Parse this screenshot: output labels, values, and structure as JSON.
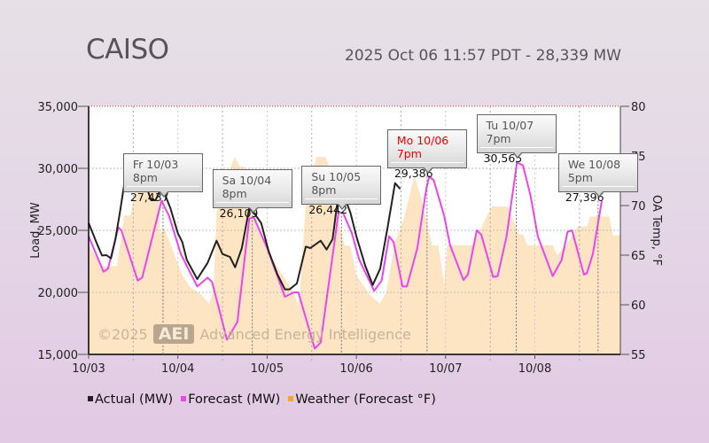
{
  "header": {
    "title": "CAISO",
    "subtitle": "2025 Oct 06 11:57 PDT - 28,339 MW"
  },
  "watermark": {
    "copyright": "©2025",
    "logo": "AEI",
    "name": "Advanced Energy Intelligence"
  },
  "legend": [
    {
      "label": "Actual (MW)",
      "color": "#222222"
    },
    {
      "label": "Forecast (MW)",
      "color": "#ee44ee"
    },
    {
      "label": "Weather (Forecast °F)",
      "color": "#f5a623"
    }
  ],
  "tooltips": [
    {
      "label": "Fr 10/03 8pm",
      "value": "27,437",
      "hour": 20,
      "mw": 27437,
      "highlight": false
    },
    {
      "label": "Sa 10/04 8pm",
      "value": "26,109",
      "hour": 44,
      "mw": 26109,
      "highlight": false
    },
    {
      "label": "Su 10/05 8pm",
      "value": "26,442",
      "hour": 68,
      "mw": 26442,
      "highlight": false
    },
    {
      "label": "Mo 10/06 7pm",
      "value": "29,386",
      "hour": 91,
      "mw": 29386,
      "highlight": true
    },
    {
      "label": "Tu 10/07 7pm",
      "value": "30,565",
      "hour": 115,
      "mw": 30565,
      "highlight": false
    },
    {
      "label": "We 10/08 5pm",
      "value": "27,396",
      "hour": 137,
      "mw": 27396,
      "highlight": false
    }
  ],
  "chart_data": {
    "type": "line",
    "x_unit": "hours since 10/03 00:00",
    "xlim": [
      0,
      143
    ],
    "x_tick_labels": [
      "10/03",
      "10/04",
      "10/05",
      "10/06",
      "10/07",
      "10/08"
    ],
    "ylabel": "Load, MW",
    "ylim": [
      15000,
      35000
    ],
    "y_tick_labels": [
      "15,000",
      "20,000",
      "25,000",
      "30,000",
      "35,000"
    ],
    "y2label": "OA Temp, °F",
    "y2lim": [
      55,
      80
    ],
    "y2_tick_labels": [
      "55",
      "60",
      "65",
      "70",
      "75",
      "80"
    ],
    "grid": true,
    "legend_position": "bottom",
    "series": [
      {
        "name": "Actual (MW)",
        "axis": "left",
        "points": [
          [
            0,
            25593
          ],
          [
            2.4,
            23807
          ],
          [
            3.6,
            22976
          ],
          [
            4.8,
            23000
          ],
          [
            6,
            22736
          ],
          [
            7.2,
            24286
          ],
          [
            8.4,
            26429
          ],
          [
            10,
            29521
          ],
          [
            12,
            30000
          ],
          [
            13.6,
            29521
          ],
          [
            15.2,
            28807
          ],
          [
            16.8,
            27429
          ],
          [
            18,
            27429
          ],
          [
            19.2,
            28214
          ],
          [
            20.4,
            27979
          ],
          [
            22,
            26786
          ],
          [
            24,
            24762
          ],
          [
            25.2,
            24048
          ],
          [
            26.4,
            22619
          ],
          [
            29.2,
            21071
          ],
          [
            32,
            22381
          ],
          [
            34.4,
            24167
          ],
          [
            36,
            23095
          ],
          [
            38,
            22857
          ],
          [
            39.4,
            22024
          ],
          [
            41.2,
            23571
          ],
          [
            43.2,
            26786
          ],
          [
            44.4,
            26429
          ],
          [
            46.4,
            25595
          ],
          [
            48.4,
            23333
          ],
          [
            50.8,
            21429
          ],
          [
            52.8,
            20238
          ],
          [
            54,
            20238
          ],
          [
            56,
            20714
          ],
          [
            58.4,
            23690
          ],
          [
            59.6,
            23571
          ],
          [
            62.4,
            24167
          ],
          [
            64,
            23452
          ],
          [
            65.6,
            24286
          ],
          [
            67.2,
            27976
          ],
          [
            68.4,
            27976
          ],
          [
            70.4,
            26429
          ],
          [
            72,
            24524
          ],
          [
            74.4,
            22143
          ],
          [
            76.4,
            20595
          ],
          [
            78.4,
            21905
          ],
          [
            80.4,
            25238
          ],
          [
            82.4,
            28810
          ],
          [
            83.8,
            28333
          ]
        ]
      },
      {
        "name": "Forecast (MW)",
        "axis": "left",
        "points": [
          [
            0,
            24524
          ],
          [
            4,
            21667
          ],
          [
            5.2,
            21905
          ],
          [
            8,
            25238
          ],
          [
            8.8,
            25000
          ],
          [
            13.2,
            20952
          ],
          [
            14.4,
            21190
          ],
          [
            19.6,
            27381
          ],
          [
            21.6,
            26190
          ],
          [
            24.8,
            23095
          ],
          [
            29.2,
            20476
          ],
          [
            32,
            21190
          ],
          [
            33.2,
            20833
          ],
          [
            37.2,
            16190
          ],
          [
            40,
            17619
          ],
          [
            43.2,
            25952
          ],
          [
            44.4,
            26071
          ],
          [
            48,
            23571
          ],
          [
            52.8,
            19643
          ],
          [
            55.2,
            20000
          ],
          [
            56.4,
            20000
          ],
          [
            60.8,
            15476
          ],
          [
            62.4,
            15952
          ],
          [
            67.2,
            26429
          ],
          [
            68.4,
            26429
          ],
          [
            70.8,
            24762
          ],
          [
            72.8,
            22619
          ],
          [
            76.8,
            20119
          ],
          [
            78.8,
            20952
          ],
          [
            80.8,
            24524
          ],
          [
            82,
            24048
          ],
          [
            84.4,
            20476
          ],
          [
            85.6,
            20476
          ],
          [
            88.4,
            23571
          ],
          [
            90.8,
            28333
          ],
          [
            91.6,
            29336
          ],
          [
            92.8,
            29048
          ],
          [
            95.6,
            26190
          ],
          [
            97.2,
            23810
          ],
          [
            100.8,
            21000
          ],
          [
            102,
            21429
          ],
          [
            104.4,
            25000
          ],
          [
            105.6,
            24643
          ],
          [
            108.8,
            21238
          ],
          [
            110,
            21310
          ],
          [
            112.4,
            24524
          ],
          [
            115.2,
            30476
          ],
          [
            116.8,
            30238
          ],
          [
            118.8,
            27857
          ],
          [
            120.8,
            24524
          ],
          [
            124.8,
            21310
          ],
          [
            127.2,
            22619
          ],
          [
            128.8,
            24881
          ],
          [
            130,
            25000
          ],
          [
            133.2,
            21429
          ],
          [
            134,
            21548
          ],
          [
            135.6,
            23095
          ],
          [
            138,
            27381
          ]
        ]
      },
      {
        "name": "Weather (Forecast °F)",
        "axis": "right",
        "type": "area",
        "points": [
          [
            0,
            66
          ],
          [
            3.6,
            63.9
          ],
          [
            7.6,
            63.9
          ],
          [
            9.6,
            69
          ],
          [
            11.2,
            69
          ],
          [
            12.4,
            71.2
          ],
          [
            15.2,
            71.7
          ],
          [
            18.8,
            71.4
          ],
          [
            19.2,
            67.2
          ],
          [
            20.4,
            67.7
          ],
          [
            25.2,
            63
          ],
          [
            27.2,
            61.8
          ],
          [
            30.4,
            61
          ],
          [
            32.4,
            60.1
          ],
          [
            33.6,
            61.5
          ],
          [
            34.4,
            69.3
          ],
          [
            36.8,
            72.3
          ],
          [
            39.2,
            74.9
          ],
          [
            40.8,
            73.9
          ],
          [
            42,
            73.9
          ],
          [
            43.2,
            69.9
          ],
          [
            48,
            65.4
          ],
          [
            55.2,
            61.25
          ],
          [
            56.4,
            59.9
          ],
          [
            56.8,
            61.25
          ],
          [
            58.4,
            70.2
          ],
          [
            61.2,
            74.9
          ],
          [
            63.6,
            74.9
          ],
          [
            64.4,
            74.3
          ],
          [
            66,
            70
          ],
          [
            68.8,
            66
          ],
          [
            70.4,
            65.9
          ],
          [
            72,
            63
          ],
          [
            75.6,
            61
          ],
          [
            78.4,
            60.1
          ],
          [
            80,
            61.25
          ],
          [
            82.4,
            66.3
          ],
          [
            84.8,
            68.7
          ],
          [
            87.6,
            73
          ],
          [
            89.6,
            70.5
          ],
          [
            92.4,
            66
          ],
          [
            94,
            66
          ],
          [
            95.6,
            62.1
          ],
          [
            96.4,
            66
          ],
          [
            103.2,
            66
          ],
          [
            108.4,
            69.9
          ],
          [
            112.8,
            69.9
          ],
          [
            115.6,
            67.1
          ],
          [
            116.8,
            67.1
          ],
          [
            118,
            66
          ],
          [
            124.8,
            66
          ],
          [
            126,
            65
          ],
          [
            128.4,
            66
          ],
          [
            131.6,
            67.9
          ],
          [
            134,
            67.9
          ],
          [
            134.8,
            68.9
          ],
          [
            140,
            68.9
          ],
          [
            141,
            67
          ],
          [
            143,
            67
          ]
        ]
      }
    ]
  }
}
